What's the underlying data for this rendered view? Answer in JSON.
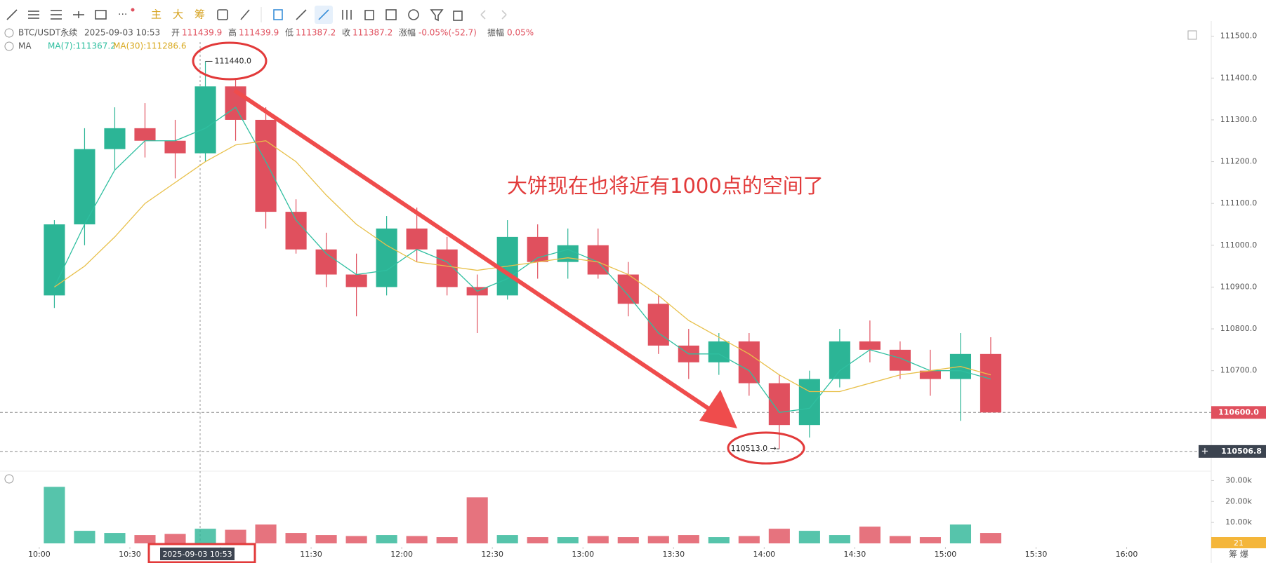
{
  "chart_data": {
    "type": "candlestick",
    "info": {
      "symbol": "BTC/USDT永续",
      "time": "2025-09-03 10:53",
      "open_label": "开",
      "open": "111439.9",
      "high_label": "高",
      "high": "111439.9",
      "low_label": "低",
      "low": "111387.2",
      "close_label": "收",
      "close": "111387.2",
      "change_label": "涨幅",
      "change": "-0.05%(-52.7)",
      "amp_label": "振幅",
      "amp": "0.05%"
    },
    "indicator": "MA",
    "annotation": "大饼现在也将近有1000点的空间了",
    "crosshair_time": "2025-09-03 10:53",
    "high_marker": {
      "value": 111440,
      "label": "111440.0"
    },
    "low_marker": {
      "value": 110513,
      "label": "110513.0 →"
    },
    "last_price": {
      "value": 110600,
      "label": "110600.0"
    },
    "ref_price": {
      "value": 110506.8,
      "label": "110506.8"
    },
    "volume_badge": "21",
    "corner_labels": "筹  爆",
    "up_color": "#2cb596",
    "down_color": "#e0505e",
    "x": [
      "10:00",
      "10:10",
      "10:20",
      "10:30",
      "10:40",
      "10:50",
      "11:00",
      "11:10",
      "11:20",
      "11:30",
      "11:40",
      "11:50",
      "12:00",
      "12:10",
      "12:20",
      "12:30",
      "12:40",
      "12:50",
      "13:00",
      "13:10",
      "13:20",
      "13:30",
      "13:40",
      "13:50",
      "14:00",
      "14:10",
      "14:20",
      "14:30",
      "14:40",
      "14:50",
      "15:00",
      "15:10"
    ],
    "open": [
      110880,
      111050,
      111230,
      111280,
      111250,
      111220,
      111380,
      111300,
      111080,
      110990,
      110930,
      110900,
      111040,
      110990,
      110900,
      110880,
      111020,
      110960,
      111000,
      110930,
      110860,
      110760,
      110720,
      110770,
      110670,
      110570,
      110680,
      110770,
      110750,
      110700,
      110680,
      110740
    ],
    "high": [
      111060,
      111280,
      111330,
      111340,
      111300,
      111440,
      111400,
      111330,
      111110,
      111030,
      110980,
      111070,
      111090,
      111020,
      110930,
      111060,
      111050,
      111040,
      111040,
      110960,
      110880,
      110800,
      110790,
      110790,
      110690,
      110700,
      110800,
      110820,
      110770,
      110750,
      110790,
      110780
    ],
    "low": [
      110850,
      111000,
      111180,
      111210,
      111160,
      111200,
      111250,
      111040,
      110980,
      110900,
      110830,
      110880,
      110960,
      110880,
      110790,
      110870,
      110920,
      110920,
      110920,
      110830,
      110740,
      110680,
      110690,
      110640,
      110513,
      110540,
      110660,
      110720,
      110680,
      110640,
      110580,
      110600
    ],
    "close": [
      111050,
      111230,
      111280,
      111250,
      111220,
      111380,
      111300,
      111080,
      110990,
      110930,
      110900,
      111040,
      110990,
      110900,
      110880,
      111020,
      110960,
      111000,
      110930,
      110860,
      110760,
      110720,
      110770,
      110670,
      110570,
      110680,
      110770,
      110750,
      110700,
      110680,
      110740,
      110600
    ],
    "volume": [
      27000,
      6000,
      5000,
      4000,
      4500,
      7000,
      6500,
      9000,
      5000,
      4000,
      3500,
      4000,
      3500,
      3000,
      22000,
      4000,
      3000,
      3000,
      3500,
      3000,
      3500,
      4000,
      3000,
      3500,
      7000,
      6000,
      4000,
      8000,
      3500,
      3000,
      9000,
      5000
    ],
    "series": [
      {
        "name": "MA(7):111367.2",
        "color": "#2fbfa0",
        "values": [
          110900,
          111050,
          111180,
          111250,
          111250,
          111280,
          111330,
          111200,
          111060,
          110980,
          110930,
          110940,
          110990,
          110960,
          110890,
          110920,
          110970,
          110990,
          110960,
          110880,
          110790,
          110740,
          110740,
          110700,
          110600,
          110610,
          110700,
          110750,
          110730,
          110700,
          110700,
          110680
        ]
      },
      {
        "name": "MA(30):111286.6",
        "color": "#e8c04a",
        "values": [
          110900,
          110950,
          111020,
          111100,
          111150,
          111200,
          111240,
          111250,
          111200,
          111120,
          111050,
          111000,
          110960,
          110950,
          110940,
          110950,
          110960,
          110970,
          110960,
          110930,
          110880,
          110820,
          110780,
          110740,
          110690,
          110650,
          110650,
          110670,
          110690,
          110700,
          110710,
          110690
        ]
      }
    ],
    "xlim": [
      "09:47",
      "16:28"
    ],
    "xticks": [
      "10:00",
      "10:30",
      "11:00",
      "11:30",
      "12:00",
      "12:30",
      "13:00",
      "13:30",
      "14:00",
      "14:30",
      "15:00",
      "15:30",
      "16:00"
    ],
    "ylim": [
      110468,
      111528
    ],
    "yticks": [
      {
        "value": 110600,
        "label": "110600.0"
      },
      {
        "value": 110700,
        "label": "110700.0"
      },
      {
        "value": 110800,
        "label": "110800.0"
      },
      {
        "value": 110900,
        "label": "110900.0"
      },
      {
        "value": 111000,
        "label": "111000.0"
      },
      {
        "value": 111100,
        "label": "111100.0"
      },
      {
        "value": 111200,
        "label": "111200.0"
      },
      {
        "value": 111300,
        "label": "111300.0"
      },
      {
        "value": 111400,
        "label": "111400.0"
      },
      {
        "value": 111500,
        "label": "111500.0"
      }
    ],
    "vlim": [
      0,
      32500
    ],
    "vticks": [
      {
        "value": 10000,
        "label": "10.00k"
      },
      {
        "value": 20000,
        "label": "20.00k"
      },
      {
        "value": 30000,
        "label": "30.00k"
      }
    ]
  }
}
